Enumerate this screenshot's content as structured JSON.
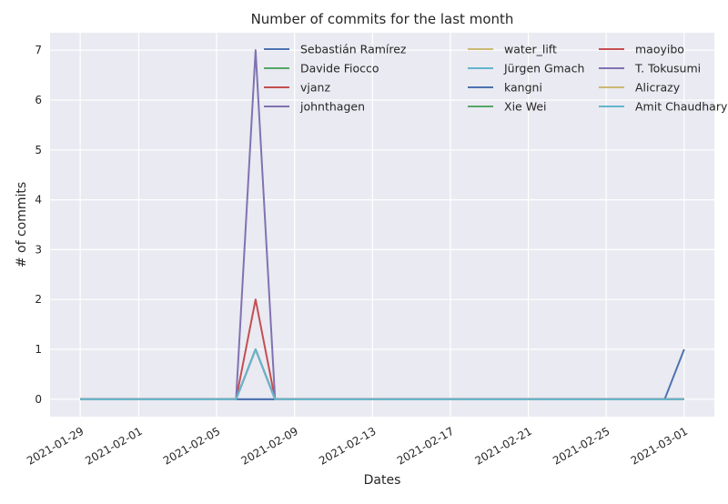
{
  "chart_data": {
    "type": "line",
    "title": "Number of commits for the last month",
    "xlabel": "Dates",
    "ylabel": "# of commits",
    "x_axis": "date",
    "xlim": [
      "2021-01-29",
      "2021-03-01"
    ],
    "ylim": [
      -0.35,
      7.35
    ],
    "x_ticks": [
      "2021-01-29",
      "2021-02-01",
      "2021-02-05",
      "2021-02-09",
      "2021-02-13",
      "2021-02-17",
      "2021-02-21",
      "2021-02-25",
      "2021-03-01"
    ],
    "y_ticks": [
      0,
      1,
      2,
      3,
      4,
      5,
      6,
      7
    ],
    "grid": true,
    "legend_placement": "top-right",
    "legend_columns": 3,
    "series": [
      {
        "name": "Sebastián Ramírez",
        "color": "#4c72b0",
        "points": [
          [
            "2021-01-29",
            0
          ],
          [
            "2021-02-28",
            0
          ],
          [
            "2021-03-01",
            1
          ]
        ]
      },
      {
        "name": "Davide Fiocco",
        "color": "#55a868",
        "points": [
          [
            "2021-01-29",
            0
          ],
          [
            "2021-02-06",
            0
          ],
          [
            "2021-02-07",
            1
          ],
          [
            "2021-02-08",
            0
          ],
          [
            "2021-03-01",
            0
          ]
        ]
      },
      {
        "name": "vjanz",
        "color": "#c44e52",
        "points": [
          [
            "2021-01-29",
            0
          ],
          [
            "2021-02-06",
            0
          ],
          [
            "2021-02-07",
            2
          ],
          [
            "2021-02-08",
            0
          ],
          [
            "2021-03-01",
            0
          ]
        ]
      },
      {
        "name": "johnthagen",
        "color": "#8172b2",
        "points": [
          [
            "2021-01-29",
            0
          ],
          [
            "2021-02-06",
            0
          ],
          [
            "2021-02-07",
            7
          ],
          [
            "2021-02-08",
            0
          ],
          [
            "2021-03-01",
            0
          ]
        ]
      },
      {
        "name": "water_lift",
        "color": "#ccb974",
        "points": [
          [
            "2021-01-29",
            0
          ],
          [
            "2021-02-06",
            0
          ],
          [
            "2021-02-07",
            1
          ],
          [
            "2021-02-08",
            0
          ],
          [
            "2021-03-01",
            0
          ]
        ]
      },
      {
        "name": "Jürgen Gmach",
        "color": "#64b5cd",
        "points": [
          [
            "2021-01-29",
            0
          ],
          [
            "2021-02-06",
            0
          ],
          [
            "2021-02-07",
            1
          ],
          [
            "2021-02-08",
            0
          ],
          [
            "2021-03-01",
            0
          ]
        ]
      },
      {
        "name": "kangni",
        "color": "#4c72b0",
        "points": [
          [
            "2021-01-29",
            0
          ],
          [
            "2021-03-01",
            0
          ]
        ]
      },
      {
        "name": "Xie Wei",
        "color": "#55a868",
        "points": [
          [
            "2021-01-29",
            0
          ],
          [
            "2021-02-06",
            0
          ],
          [
            "2021-02-07",
            1
          ],
          [
            "2021-02-08",
            0
          ],
          [
            "2021-03-01",
            0
          ]
        ]
      },
      {
        "name": "maoyibo",
        "color": "#c44e52",
        "points": [
          [
            "2021-01-29",
            0
          ],
          [
            "2021-02-06",
            0
          ],
          [
            "2021-02-07",
            1
          ],
          [
            "2021-02-08",
            0
          ],
          [
            "2021-03-01",
            0
          ]
        ]
      },
      {
        "name": "T. Tokusumi",
        "color": "#8172b2",
        "points": [
          [
            "2021-01-29",
            0
          ],
          [
            "2021-02-06",
            0
          ],
          [
            "2021-02-07",
            1
          ],
          [
            "2021-02-08",
            0
          ],
          [
            "2021-03-01",
            0
          ]
        ]
      },
      {
        "name": "Alicrazy",
        "color": "#ccb974",
        "points": [
          [
            "2021-01-29",
            0
          ],
          [
            "2021-02-06",
            0
          ],
          [
            "2021-02-07",
            1
          ],
          [
            "2021-02-08",
            0
          ],
          [
            "2021-03-01",
            0
          ]
        ]
      },
      {
        "name": "Amit Chaudhary",
        "color": "#64b5cd",
        "points": [
          [
            "2021-01-29",
            0
          ],
          [
            "2021-02-06",
            0
          ],
          [
            "2021-02-07",
            1
          ],
          [
            "2021-02-08",
            0
          ],
          [
            "2021-03-01",
            0
          ]
        ]
      }
    ]
  },
  "colors": {
    "plot_background": "#eaeaf2",
    "grid": "#ffffff"
  }
}
